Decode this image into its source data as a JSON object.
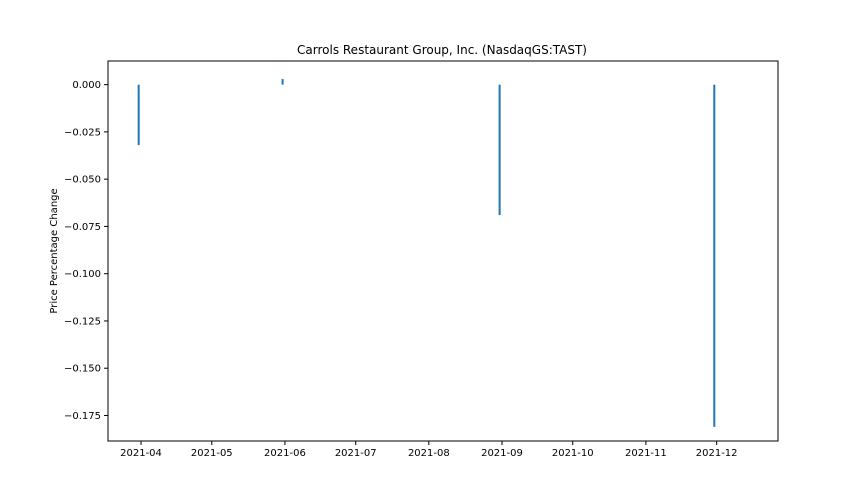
{
  "chart_data": {
    "type": "bar",
    "title": "Carrols Restaurant Group, Inc. (NasdaqGS:TAST)",
    "xlabel": "",
    "ylabel": "Price Percentage Change",
    "x_axis": {
      "type": "date",
      "range": [
        "2021-03-18",
        "2021-12-27"
      ],
      "ticks": [
        "2021-04",
        "2021-05",
        "2021-06",
        "2021-07",
        "2021-08",
        "2021-09",
        "2021-10",
        "2021-11",
        "2021-12"
      ]
    },
    "y_axis": {
      "range": [
        -0.1885,
        0.0125
      ],
      "ticks": [
        0.0,
        -0.025,
        -0.05,
        -0.075,
        -0.1,
        -0.125,
        -0.15,
        -0.175
      ],
      "tick_labels": [
        "0.000",
        "−0.025",
        "−0.050",
        "−0.075",
        "−0.100",
        "−0.125",
        "−0.150",
        "−0.175"
      ]
    },
    "x": [
      "2021-03-31",
      "2021-05-31",
      "2021-08-31",
      "2021-11-30"
    ],
    "values": [
      -0.032,
      0.003,
      -0.069,
      -0.181
    ],
    "bar_color": "#1f77b4",
    "grid": false,
    "legend": "none"
  }
}
